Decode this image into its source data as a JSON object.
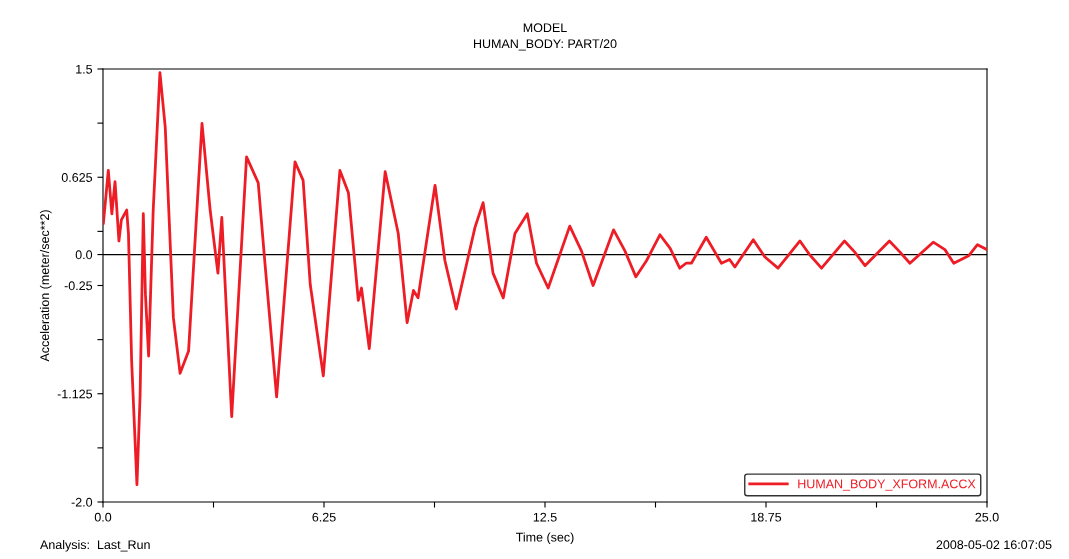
{
  "chart_data": {
    "type": "line",
    "title": "MODEL",
    "subtitle": "HUMAN_BODY: PART/20",
    "xlabel": "Time (sec)",
    "ylabel": "Acceleration (meter/sec**2)",
    "annotations": [
      "Analysis:  Last_Run",
      "2008-05-02 16:07:05"
    ],
    "series": [
      {
        "name": "HUMAN_BODY_XFORM.ACCX",
        "color": "#ee1c25",
        "x": [
          0,
          0.01,
          0.15,
          0.25,
          0.34,
          0.45,
          0.52,
          0.67,
          0.72,
          0.81,
          0.96,
          1.05,
          1.14,
          1.2,
          1.29,
          1.42,
          1.61,
          1.76,
          1.99,
          2.18,
          2.42,
          2.8,
          3.03,
          3.25,
          3.36,
          3.64,
          4.06,
          4.39,
          4.58,
          4.91,
          5.43,
          5.66,
          5.86,
          6.23,
          6.7,
          6.94,
          7.22,
          7.31,
          7.53,
          7.98,
          8.35,
          8.6,
          8.78,
          8.91,
          9.39,
          9.67,
          9.99,
          10.52,
          10.75,
          11.03,
          11.32,
          11.65,
          12.0,
          12.26,
          12.59,
          13.2,
          13.53,
          13.86,
          14.44,
          14.76,
          15.07,
          15.37,
          15.75,
          16.04,
          16.31,
          16.49,
          16.64,
          17.06,
          17.49,
          17.72,
          17.87,
          18.39,
          18.72,
          19.09,
          19.71,
          19.98,
          20.32,
          20.97,
          21.26,
          21.55,
          22.24,
          22.54,
          22.82,
          23.48,
          23.81,
          24.06,
          24.48,
          24.73,
          25.0
        ],
        "values": [
          0.36,
          0.25,
          0.68,
          0.33,
          0.59,
          0.11,
          0.28,
          0.36,
          0.17,
          -0.86,
          -1.86,
          -1.13,
          0.33,
          -0.32,
          -0.82,
          0.36,
          1.47,
          1.03,
          -0.51,
          -0.96,
          -0.78,
          1.06,
          0.36,
          -0.15,
          0.3,
          -1.31,
          0.79,
          0.58,
          -0.07,
          -1.15,
          0.75,
          0.6,
          -0.24,
          -0.98,
          0.68,
          0.5,
          -0.37,
          -0.27,
          -0.76,
          0.67,
          0.17,
          -0.55,
          -0.29,
          -0.35,
          0.56,
          -0.05,
          -0.44,
          0.22,
          0.42,
          -0.15,
          -0.35,
          0.17,
          0.33,
          -0.07,
          -0.27,
          0.23,
          0.03,
          -0.25,
          0.2,
          0.03,
          -0.18,
          -0.05,
          0.16,
          0.05,
          -0.11,
          -0.07,
          -0.07,
          0.14,
          -0.07,
          -0.04,
          -0.1,
          0.12,
          -0.02,
          -0.11,
          0.11,
          0.0,
          -0.11,
          0.11,
          0.02,
          -0.09,
          0.11,
          0.02,
          -0.07,
          0.1,
          0.04,
          -0.07,
          -0.01,
          0.08,
          0.04
        ]
      }
    ],
    "xlim": [
      0,
      25
    ],
    "ylim": [
      -2.0,
      1.5
    ],
    "xticks": [
      {
        "value": 0,
        "label": "0.0"
      },
      {
        "value": 3.125,
        "label": null
      },
      6.25,
      {
        "value": 9.375,
        "label": null
      },
      12.5,
      {
        "value": 15.625,
        "label": null
      },
      18.75,
      {
        "value": 21.875,
        "label": null
      },
      {
        "value": 25,
        "label": "25.0"
      }
    ],
    "yticks": [
      {
        "value": 1.5,
        "label": "1.5"
      },
      {
        "value": 1.0625,
        "label": null
      },
      0.625,
      {
        "value": 0.1875,
        "label": null
      },
      {
        "value": 0,
        "label": "0.0"
      },
      -0.25,
      {
        "value": -0.6875,
        "label": null
      },
      -1.125,
      {
        "value": -1.5625,
        "label": null
      },
      {
        "value": -2.0,
        "label": "-2.0"
      }
    ],
    "ref_lines": [
      {
        "axis": "y",
        "value": 0,
        "color": "#000000"
      }
    ],
    "grid": false,
    "legend": "bottom right",
    "marker": "none",
    "line_style": "solid"
  }
}
